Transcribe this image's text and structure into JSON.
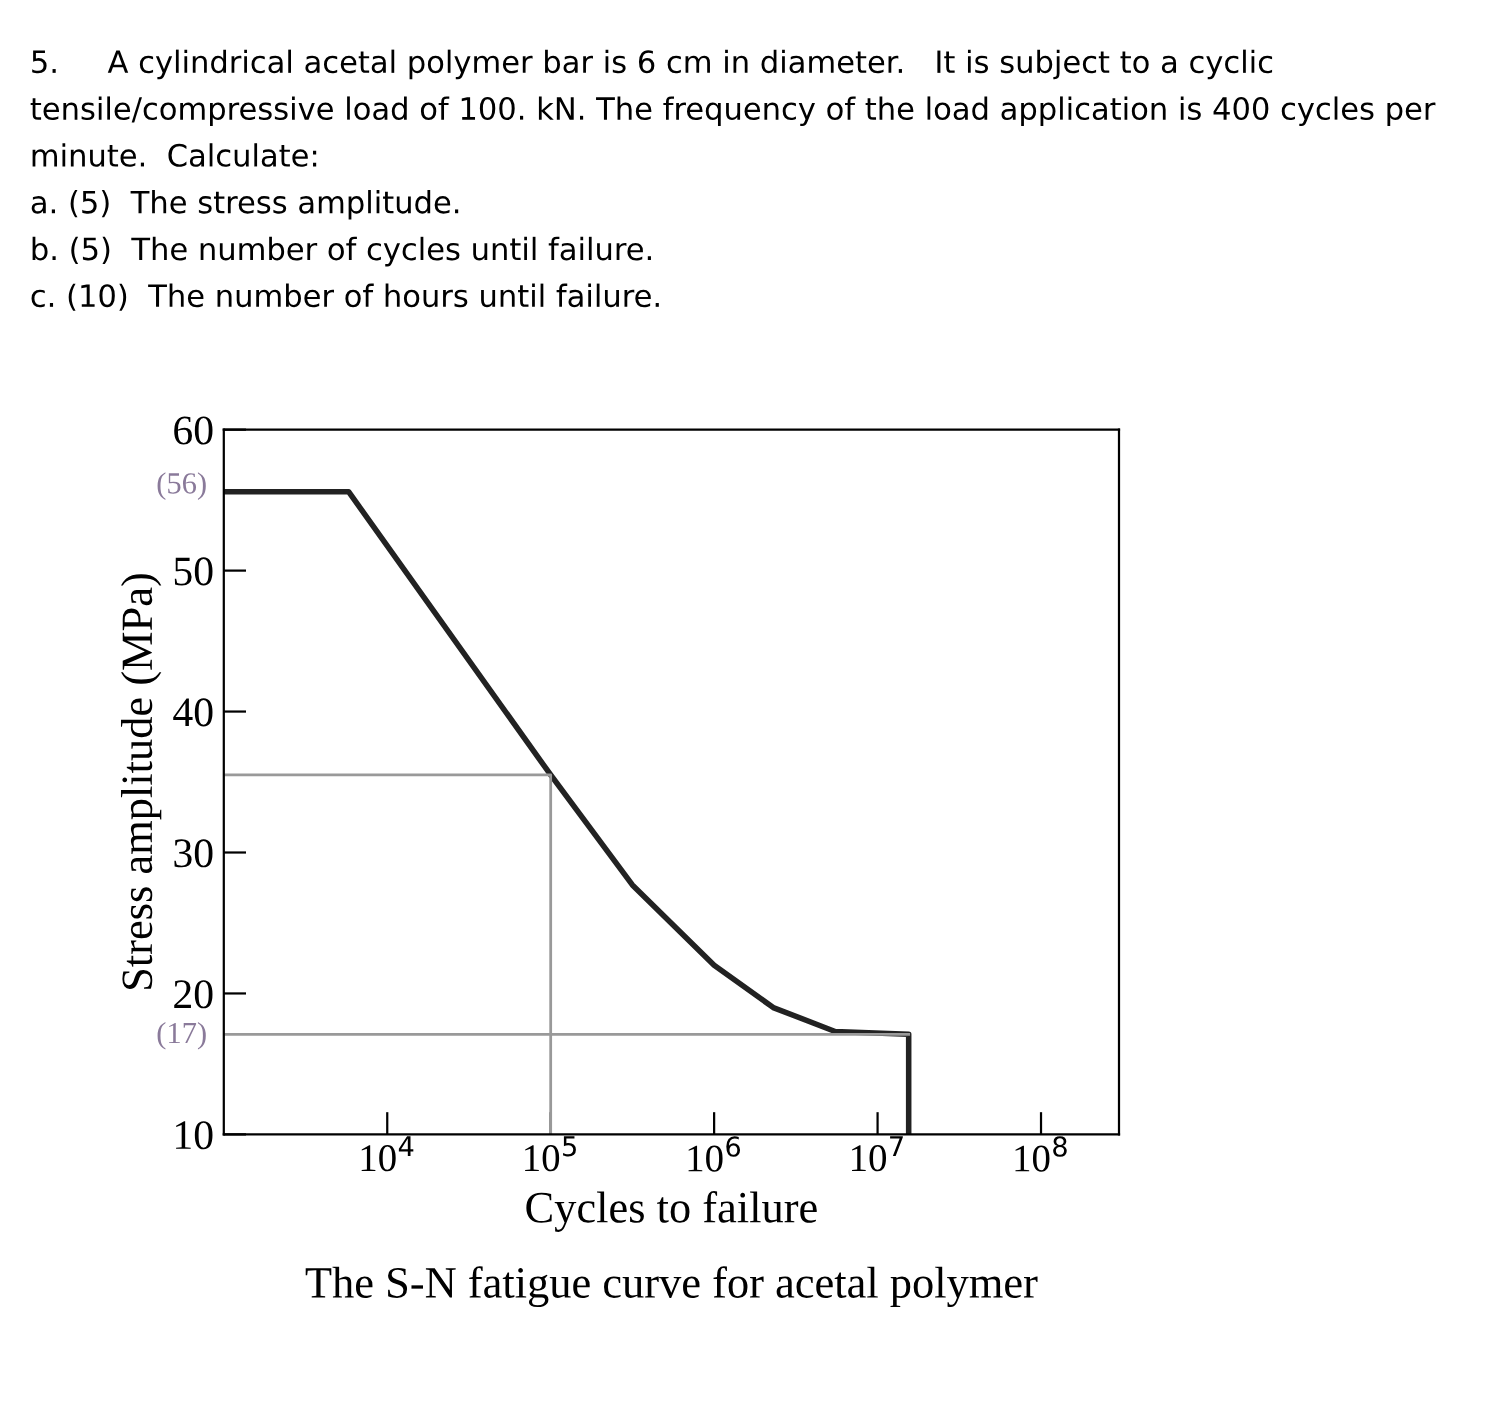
{
  "chart_data": {
    "type": "line",
    "title": "The S-N fatigue curve for acetal polymer",
    "xlabel": "Cycles to failure",
    "ylabel": "Stress amplitude (MPa)",
    "log": "x",
    "xlim": [
      1000,
      300000000
    ],
    "xticks": [
      {
        "value": 10000,
        "label": "10$^{4}$"
      },
      {
        "value": 100000,
        "label": "10$^{5}$"
      },
      {
        "value": 1000000,
        "label": "10$^{6}$"
      },
      {
        "value": 10000000,
        "label": "10$^{7}$"
      },
      {
        "value": 100000000,
        "label": "10$^{8}$"
      }
    ],
    "ylim": [
      10,
      60
    ],
    "yticks": [
      10,
      20,
      30,
      40,
      50,
      60
    ],
    "grid": false,
    "legend": false,
    "series": [
      {
        "color": "#222222",
        "x": [
          1000,
          5800,
          100000,
          316000,
          1000000,
          2300000,
          5500000,
          15500000,
          15500000
        ],
        "values": [
          55.6,
          55.6,
          35.5,
          27.7,
          22.0,
          19.0,
          17.3,
          17.1,
          10
        ]
      },
      {
        "color": "#999999",
        "x": [
          1000,
          100000,
          100000
        ],
        "values": [
          35.5,
          35.5,
          10
        ]
      },
      {
        "color": "#999999",
        "x": [
          1000,
          15500000
        ],
        "values": [
          17.1,
          17.1
        ]
      }
    ],
    "annotations": [
      "5.     A cylindrical acetal polymer bar is 6 cm in diameter.   It is subject to a cyclic",
      "tensile/compressive load of 100. kN. The frequency of the load application is 400 cycles per",
      "minute.  Calculate:",
      "a. (5)  The stress amplitude.",
      "b. (5)  The number of cycles until failure.",
      "c. (10)  The number of hours until failure.",
      {
        "text": "(56)",
        "x": 1000,
        "y": 56
      },
      {
        "text": "(17)",
        "x": 1000,
        "y": 17
      }
    ]
  }
}
